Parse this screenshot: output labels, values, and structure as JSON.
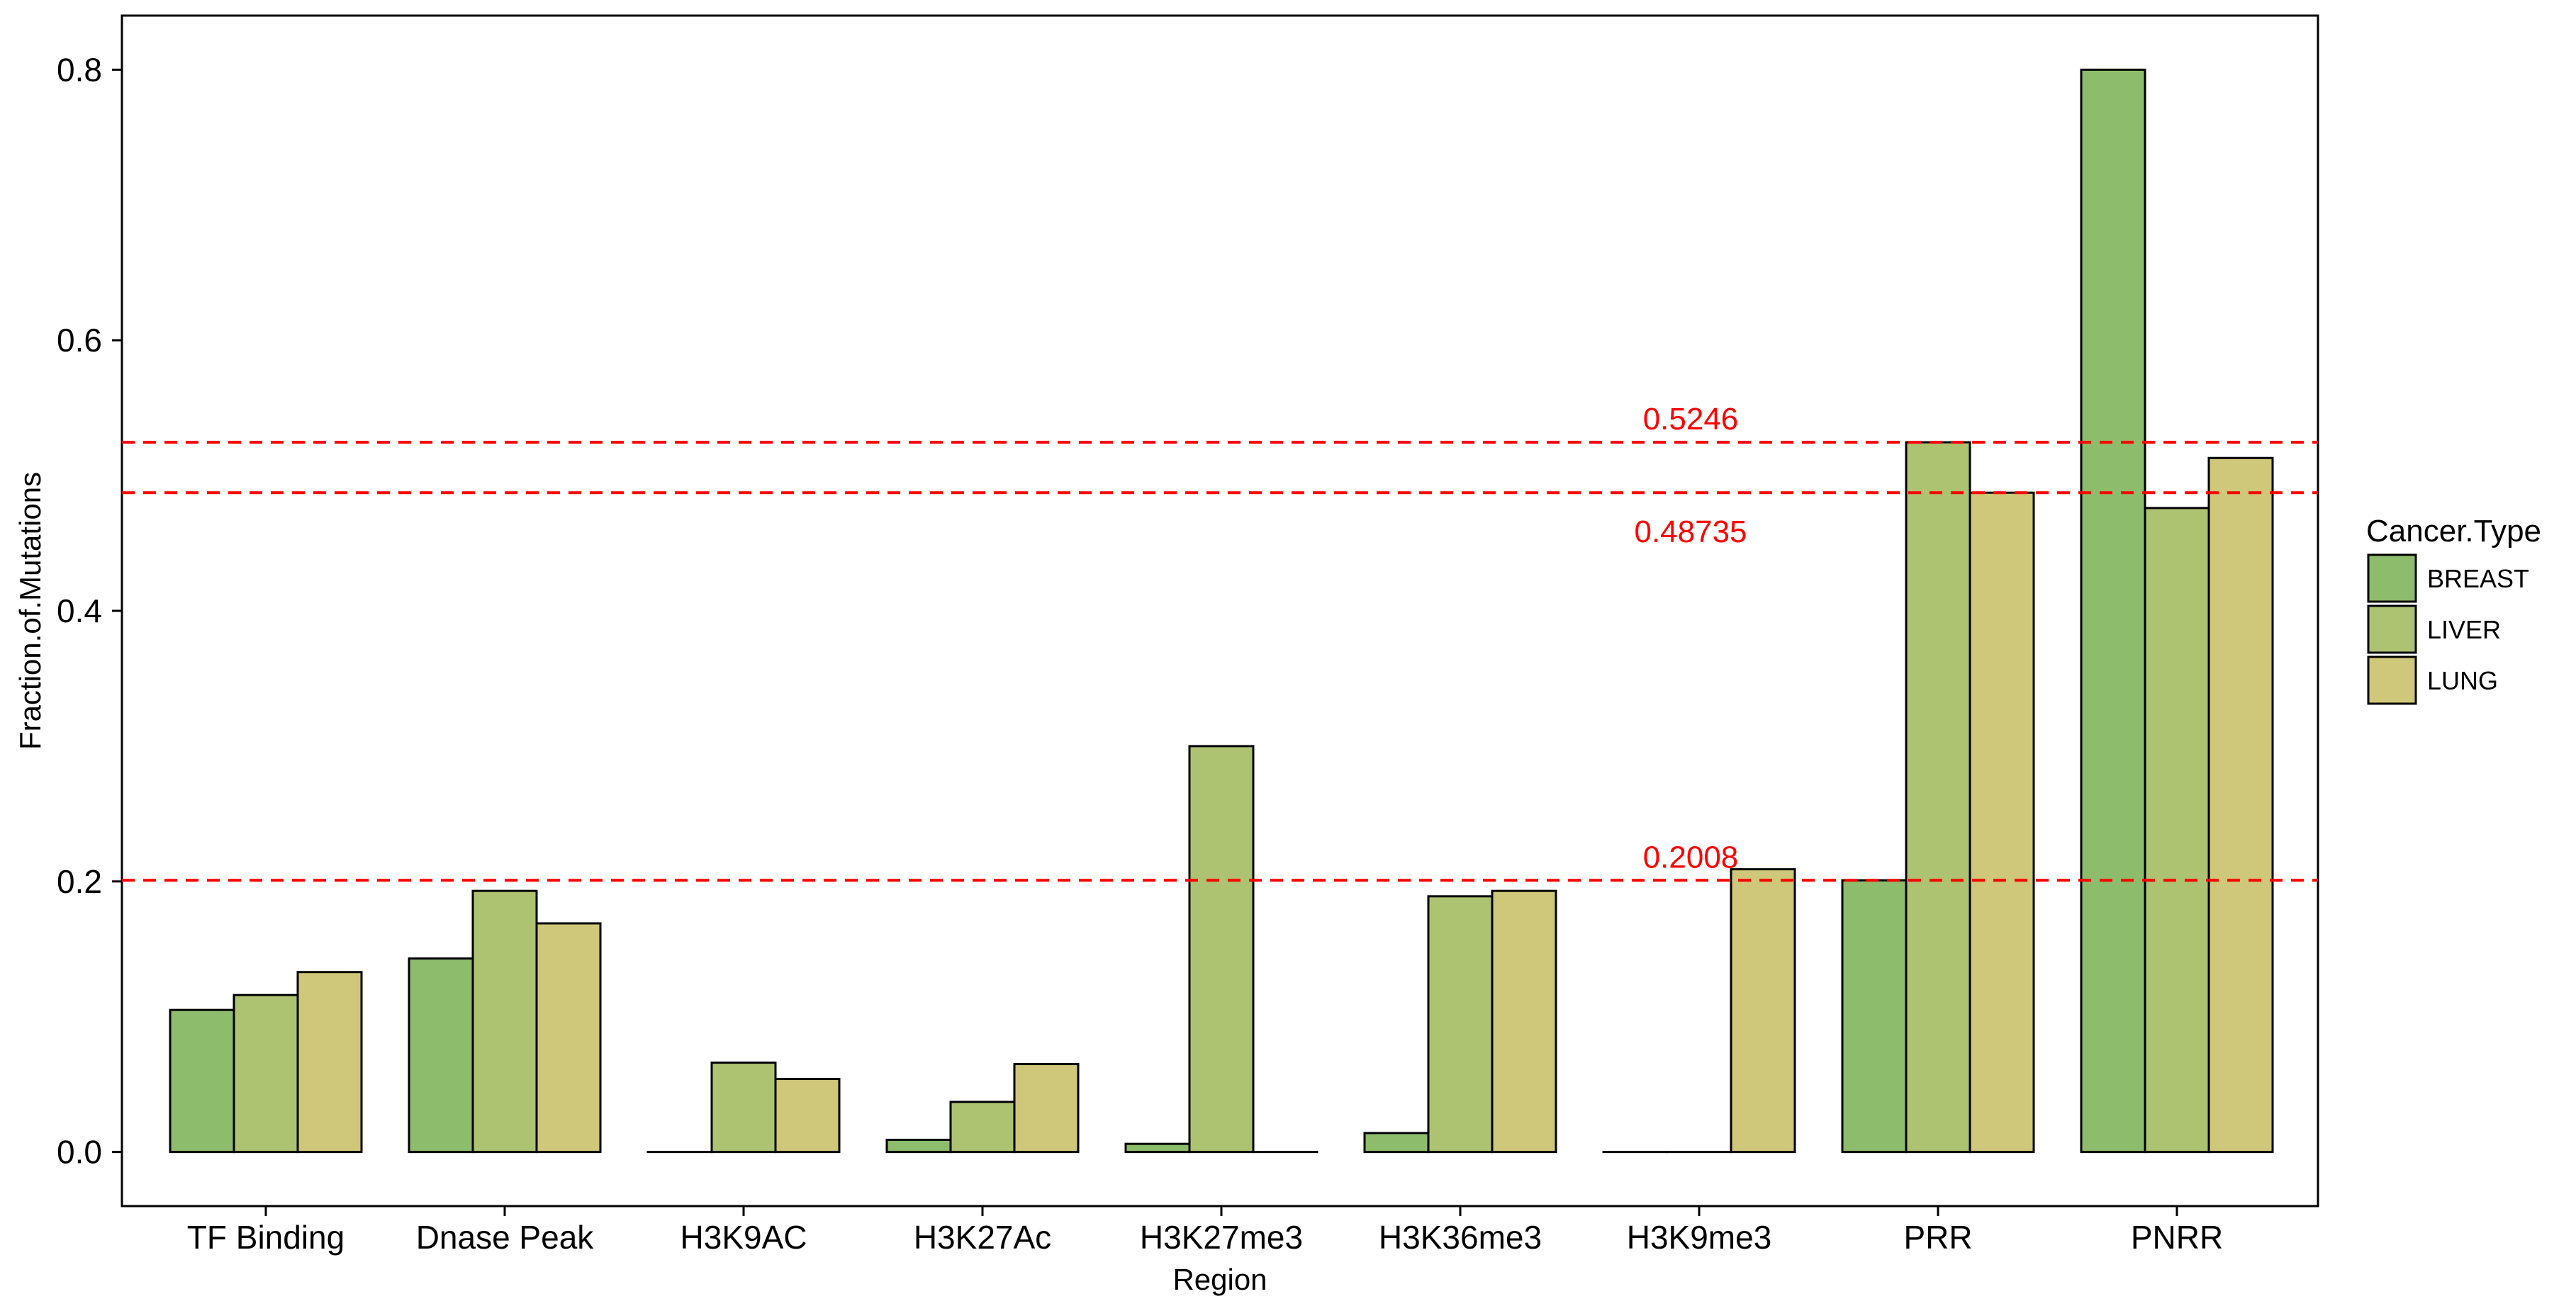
{
  "chart_data": {
    "type": "bar",
    "xlabel": "Region",
    "ylabel": "Fraction.of.Mutations",
    "ylim": [
      -0.04,
      0.84
    ],
    "yticks": [
      0.0,
      0.2,
      0.4,
      0.6,
      0.8
    ],
    "ytick_labels": [
      "0.0",
      "0.2",
      "0.4",
      "0.6",
      "0.8"
    ],
    "grid": false,
    "categories": [
      "TF Binding",
      "Dnase Peak",
      "H3K9AC",
      "H3K27Ac",
      "H3K27me3",
      "H3K36me3",
      "H3K9me3",
      "PRR",
      "PNRR"
    ],
    "series": [
      {
        "name": "BREAST",
        "color": "#8dbd6c",
        "values": [
          0.105,
          0.143,
          0.0,
          0.009,
          0.006,
          0.014,
          0.0,
          0.2008,
          0.8
        ]
      },
      {
        "name": "LIVER",
        "color": "#adc372",
        "values": [
          0.116,
          0.193,
          0.066,
          0.037,
          0.3,
          0.189,
          0.0,
          0.5246,
          0.476
        ]
      },
      {
        "name": "LUNG",
        "color": "#cfc779",
        "values": [
          0.133,
          0.169,
          0.054,
          0.065,
          0.0,
          0.193,
          0.209,
          0.48735,
          0.513
        ]
      }
    ],
    "legend": {
      "title": "Cancer.Type",
      "placement": "right"
    },
    "reference_lines": [
      {
        "value": 0.5246,
        "label": "0.5246",
        "label_side": "above",
        "color": "#ff0000"
      },
      {
        "value": 0.48735,
        "label": "0.48735",
        "label_side": "below",
        "color": "#ff0000"
      },
      {
        "value": 0.2008,
        "label": "0.2008",
        "label_side": "above",
        "color": "#ff0000"
      }
    ]
  }
}
